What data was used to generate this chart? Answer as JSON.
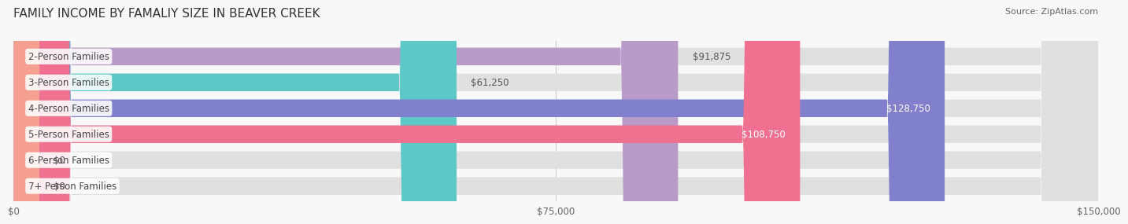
{
  "title": "FAMILY INCOME BY FAMALIY SIZE IN BEAVER CREEK",
  "source": "Source: ZipAtlas.com",
  "categories": [
    "2-Person Families",
    "3-Person Families",
    "4-Person Families",
    "5-Person Families",
    "6-Person Families",
    "7+ Person Families"
  ],
  "values": [
    91875,
    61250,
    128750,
    108750,
    0,
    0
  ],
  "bar_colors": [
    "#b89bc8",
    "#5ec8c8",
    "#8080cc",
    "#f07090",
    "#f5c89a",
    "#f5a090"
  ],
  "label_colors": [
    "#ffffff",
    "#555555",
    "#ffffff",
    "#ffffff",
    "#555555",
    "#555555"
  ],
  "value_labels": [
    "$91,875",
    "$61,250",
    "$128,750",
    "$108,750",
    "$0",
    "$0"
  ],
  "xlim": [
    0,
    150000
  ],
  "xticks": [
    0,
    75000,
    150000
  ],
  "xticklabels": [
    "$0",
    "$75,000",
    "$150,000"
  ],
  "background_color": "#f0f0f0",
  "bar_background_color": "#e8e8e8",
  "title_fontsize": 11,
  "source_fontsize": 8,
  "label_fontsize": 8.5,
  "value_fontsize": 8.5,
  "bar_height": 0.68
}
